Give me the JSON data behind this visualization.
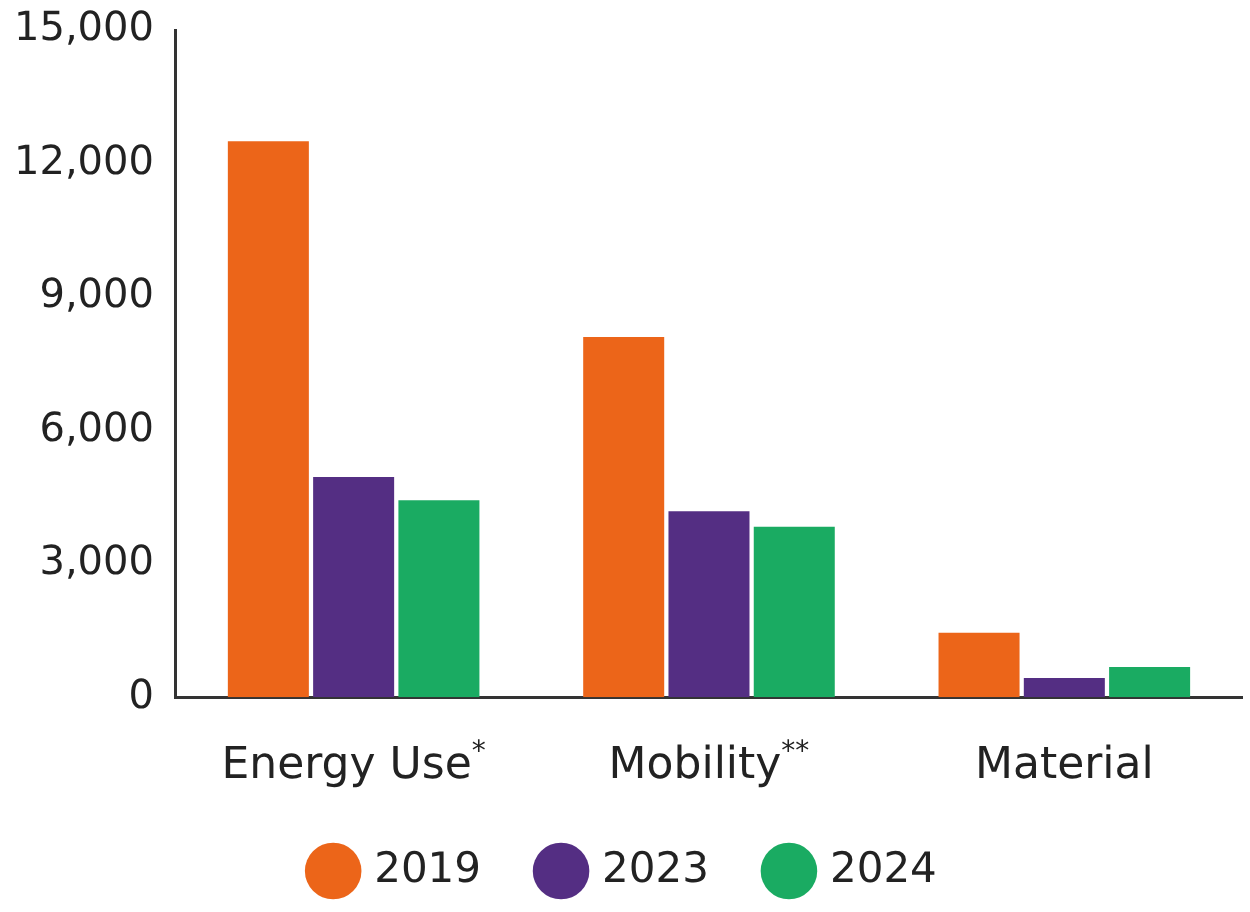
{
  "chart_data": {
    "type": "bar",
    "categories": [
      "Energy Use$^{*}$",
      "Mobility$^{**}$",
      "Material"
    ],
    "series": [
      {
        "name": "2019",
        "color": "#ec6519",
        "values": [
          12500,
          8100,
          1450
        ]
      },
      {
        "name": "2023",
        "color": "#542e83",
        "values": [
          4950,
          4180,
          430
        ]
      },
      {
        "name": "2024",
        "color": "#1aab62",
        "values": [
          4430,
          3830,
          680
        ]
      }
    ],
    "ylim": [
      0,
      15000
    ],
    "yticks": [
      {
        "value": 0,
        "label": "0"
      },
      {
        "value": 3000,
        "label": "3,000"
      },
      {
        "value": 6000,
        "label": "6,000"
      },
      {
        "value": 9000,
        "label": "9,000"
      },
      {
        "value": 12000,
        "label": "12,000"
      },
      {
        "value": 15000,
        "label": "15,000"
      }
    ],
    "grid": false,
    "legend": "bottom"
  }
}
